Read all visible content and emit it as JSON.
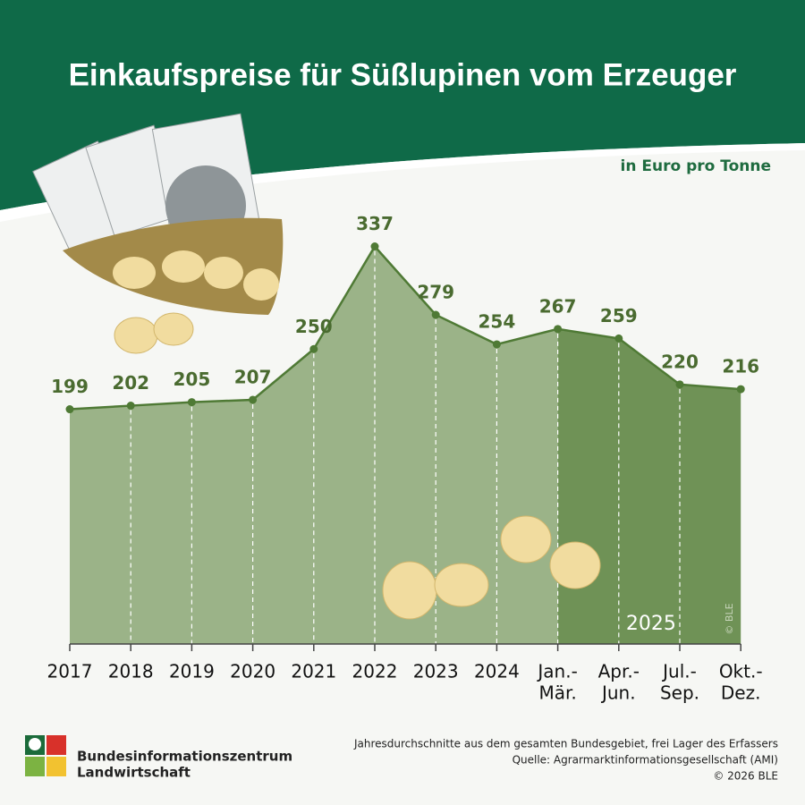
{
  "chart_data": {
    "type": "area",
    "title": "Einkaufspreise für Süßlupinen vom Erzeuger",
    "subtitle": "in Euro pro Tonne",
    "categories": [
      [
        "2017"
      ],
      [
        "2018"
      ],
      [
        "2019"
      ],
      [
        "2020"
      ],
      [
        "2021"
      ],
      [
        "2022"
      ],
      [
        "2023"
      ],
      [
        "2024"
      ],
      [
        "Jan.-",
        "Mär."
      ],
      [
        "Apr.-",
        "Jun."
      ],
      [
        "Jul.-",
        "Sep."
      ],
      [
        "Okt.-",
        "Dez."
      ]
    ],
    "values": [
      199,
      202,
      205,
      207,
      250,
      337,
      279,
      254,
      267,
      259,
      220,
      216
    ],
    "color": "#9bb388",
    "line_color": "#4f7a35",
    "ylim": [
      0,
      400
    ],
    "highlight": {
      "label": "2025",
      "from_category": 8,
      "color": "#6f9256"
    },
    "copyright_mark": "© BLE"
  },
  "footer": {
    "logo_lines": [
      "Bundesinformationszentrum",
      "Landwirtschaft"
    ],
    "notes": [
      "Jahresdurchschnitte aus dem gesamten Bundesgebiet, frei Lager des Erfassers",
      "Quelle: Agrarmarktinformationsgesellschaft (AMI)",
      "© 2026 BLE"
    ]
  }
}
